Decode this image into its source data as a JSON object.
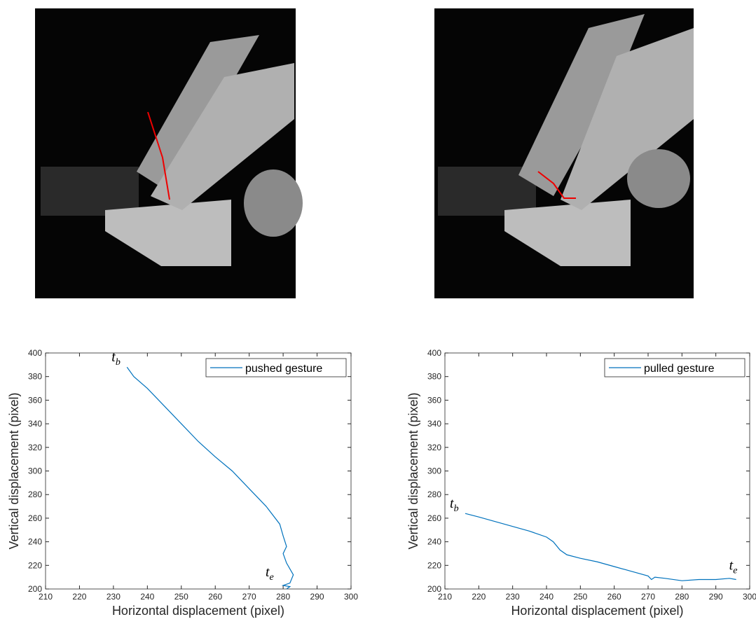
{
  "chart_data": [
    {
      "type": "line",
      "xlabel": "Horizontal displacement (pixel)",
      "ylabel": "Vertical displacement (pixel)",
      "xlim": [
        210,
        300
      ],
      "xticks": [
        210,
        220,
        230,
        240,
        250,
        260,
        270,
        280,
        290,
        300
      ],
      "ylim": [
        200,
        400
      ],
      "yticks": [
        200,
        220,
        240,
        260,
        280,
        300,
        320,
        340,
        360,
        380,
        400
      ],
      "legend": "northeast",
      "annotations": [
        {
          "text": "t",
          "subscript": "b"
        },
        {
          "text": "t",
          "subscript": "e"
        }
      ],
      "series": [
        {
          "name": "pushed gesture",
          "color": "#0072bd",
          "x": [
            234,
            236,
            240,
            245,
            250,
            255,
            260,
            265,
            270,
            275,
            279,
            280,
            281,
            280,
            281,
            283,
            282,
            280,
            282,
            281
          ],
          "y": [
            388,
            380,
            370,
            355,
            340,
            325,
            312,
            300,
            285,
            270,
            255,
            245,
            236,
            230,
            222,
            212,
            205,
            203,
            202,
            200
          ]
        }
      ]
    },
    {
      "type": "line",
      "xlabel": "Horizontal displacement (pixel)",
      "ylabel": "Vertical displacement (pixel)",
      "xlim": [
        210,
        300
      ],
      "xticks": [
        210,
        220,
        230,
        240,
        250,
        260,
        270,
        280,
        290,
        300
      ],
      "ylim": [
        200,
        400
      ],
      "yticks": [
        200,
        220,
        240,
        260,
        280,
        300,
        320,
        340,
        360,
        380,
        400
      ],
      "legend": "northeast",
      "annotations": [
        {
          "text": "t",
          "subscript": "b"
        },
        {
          "text": "t",
          "subscript": "e"
        }
      ],
      "series": [
        {
          "name": "pulled gesture",
          "color": "#0072bd",
          "x": [
            216,
            220,
            225,
            230,
            235,
            240,
            242,
            244,
            246,
            250,
            255,
            260,
            265,
            270,
            271,
            272,
            275,
            280,
            285,
            290,
            294,
            296
          ],
          "y": [
            264,
            261,
            257,
            253,
            249,
            244,
            240,
            233,
            229,
            226,
            223,
            219,
            215,
            211,
            208,
            210,
            209,
            207,
            208,
            208,
            209,
            208
          ]
        }
      ]
    }
  ]
}
